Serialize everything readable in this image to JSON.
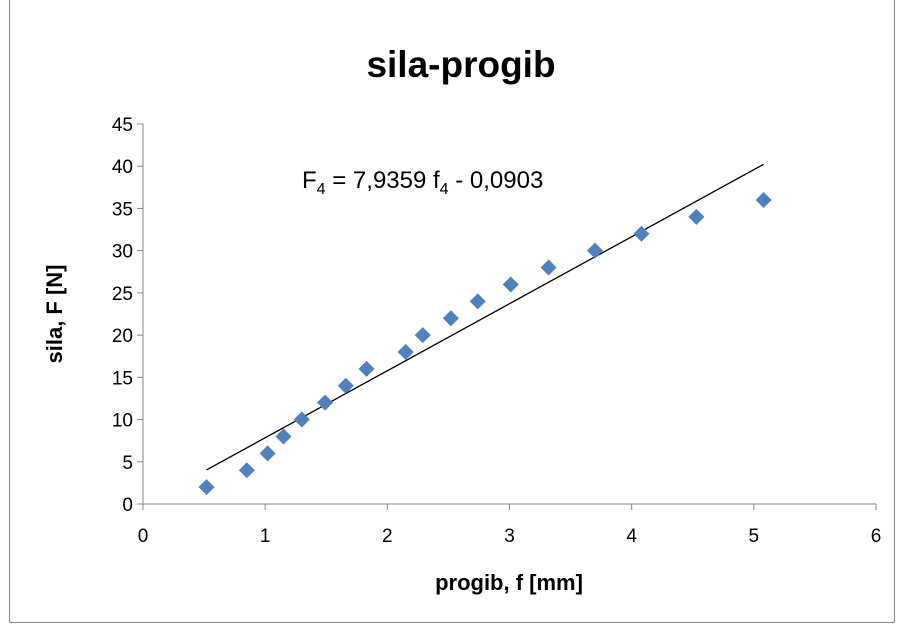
{
  "chart_data": {
    "type": "scatter",
    "title": "sila-progib",
    "xlabel": "progib, f [mm]",
    "ylabel": "sila, F [N]",
    "xlim": [
      0,
      6
    ],
    "ylim": [
      0,
      45
    ],
    "xticks": [
      "0",
      "1",
      "2",
      "3",
      "4",
      "5",
      "6"
    ],
    "yticks": [
      "0",
      "5",
      "10",
      "15",
      "20",
      "25",
      "30",
      "35",
      "40",
      "45"
    ],
    "grid": false,
    "legend": "none",
    "marker": "diamond",
    "marker_color": "#4f81bd",
    "series": [
      {
        "x": [
          0.52,
          0.85,
          1.02,
          1.15,
          1.3,
          1.49,
          1.66,
          1.83,
          2.15,
          2.29,
          2.52,
          2.74,
          3.01,
          3.32,
          3.7,
          4.08,
          4.53,
          5.08
        ],
        "y": [
          2,
          4,
          6,
          8,
          10,
          12,
          14,
          16,
          18,
          20,
          22,
          24,
          26,
          28,
          30,
          32,
          34,
          36
        ]
      }
    ],
    "trendline": {
      "slope": 7.9359,
      "intercept": -0.0903,
      "x_range": [
        0.52,
        5.08
      ],
      "color": "#000000",
      "equation": {
        "lhs": "F",
        "lhs_sub": "4",
        "mid": " = 7,9359 f",
        "mid_sub": "4",
        "rhs": " - 0,0903"
      }
    }
  }
}
